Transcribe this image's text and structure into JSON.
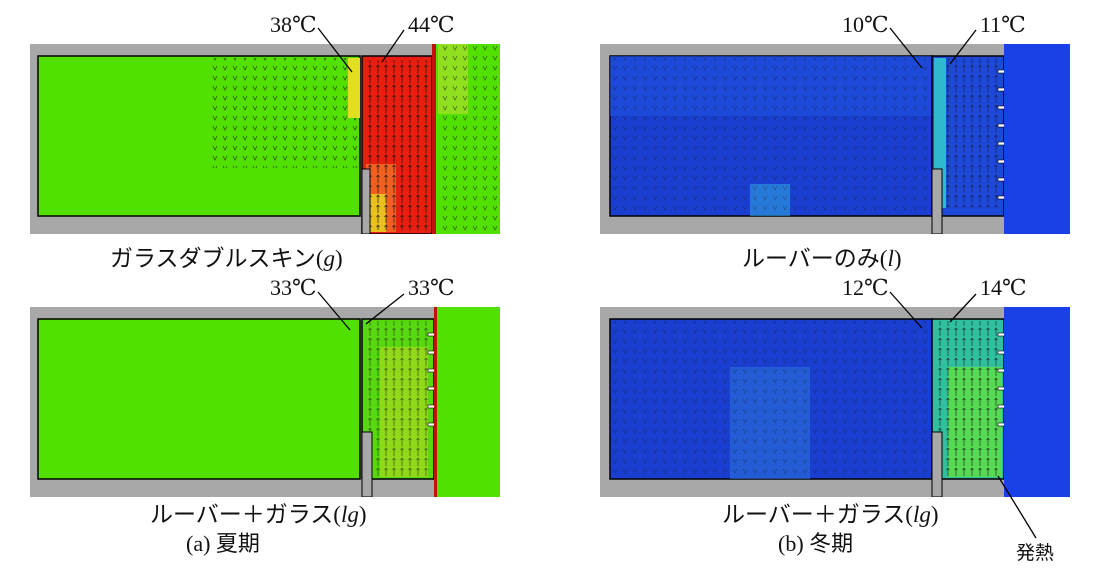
{
  "panels": [
    {
      "id": "g",
      "temp_left": "38℃",
      "temp_right": "44℃",
      "caption_text": "ガラスダブルスキン(",
      "caption_code": "g",
      "caption_close": ")"
    },
    {
      "id": "l",
      "temp_left": "10℃",
      "temp_right": "11℃",
      "caption_text": "ルーバーのみ(",
      "caption_code": "l",
      "caption_close": ")"
    },
    {
      "id": "lg_summer",
      "temp_left": "33℃",
      "temp_right": "33℃",
      "caption_text": "ルーバー＋ガラス(",
      "caption_code": "lg",
      "caption_close": ")"
    },
    {
      "id": "lg_winter",
      "temp_left": "12℃",
      "temp_right": "14℃",
      "caption_text": "ルーバー＋ガラス(",
      "caption_code": "lg",
      "caption_close": ")"
    }
  ],
  "subtitles": {
    "summer": "(a)  夏期",
    "winter": "(b)  冬期"
  },
  "annotation_heat": "発熱",
  "colors": {
    "green": "#52e000",
    "blue": "#1a3fd0",
    "red": "#e81e10",
    "wall": "#a8a8a8"
  }
}
